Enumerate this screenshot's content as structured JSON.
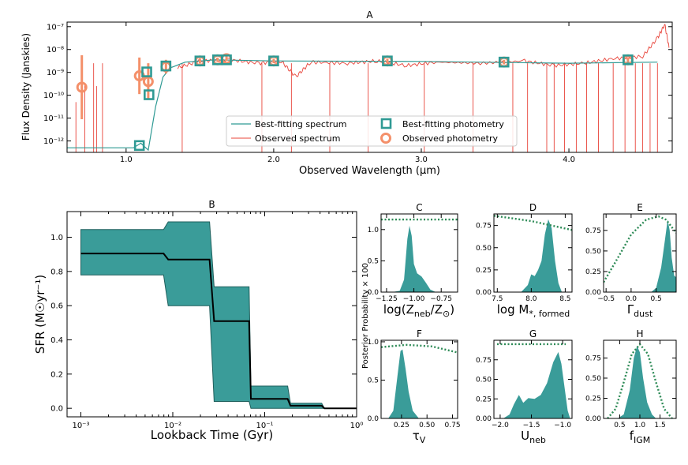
{
  "colors": {
    "model": "#2f9a94",
    "observed": "#e8443a",
    "obs_point": "#f4906a",
    "fill": "#3a9c99",
    "prior": "#2e8b57",
    "sfh_line": "#000000"
  },
  "chart_data": [
    {
      "panel": "A",
      "type": "line",
      "title": "A",
      "xlabel": "Observed Wavelength (μm)",
      "ylabel": "Flux Density (Janskies)",
      "xlim": [
        0.6,
        4.7
      ],
      "ylim_log10": [
        -12.5,
        -6.8
      ],
      "log_y": true,
      "xticks": [
        1.0,
        2.0,
        3.0,
        4.0
      ],
      "yticks": [
        {
          "v": -12,
          "l": "10⁻¹²"
        },
        {
          "v": -11,
          "l": "10⁻¹¹"
        },
        {
          "v": -10,
          "l": "10⁻¹⁰"
        },
        {
          "v": -9,
          "l": "10⁻⁹"
        },
        {
          "v": -8,
          "l": "10⁻⁸"
        },
        {
          "v": -7,
          "l": "10⁻⁷"
        }
      ],
      "legend": [
        "Best-fitting spectrum",
        "Observed spectrum",
        "Best-fitting photometry",
        "Observed photometry"
      ],
      "observed_photometry": [
        {
          "x": 0.7,
          "y": -9.65,
          "err": 1.4
        },
        {
          "x": 1.09,
          "y": -9.15,
          "err": 0.8
        },
        {
          "x": 1.15,
          "y": -9.4,
          "err": 0.8
        },
        {
          "x": 1.27,
          "y": -8.75,
          "err": 0.3
        },
        {
          "x": 1.5,
          "y": -8.5,
          "err": 0.12
        },
        {
          "x": 1.62,
          "y": -8.45,
          "err": 0.1
        },
        {
          "x": 1.68,
          "y": -8.4,
          "err": 0.1
        },
        {
          "x": 2.0,
          "y": -8.5,
          "err": 0.1
        },
        {
          "x": 2.77,
          "y": -8.5,
          "err": 0.1
        },
        {
          "x": 3.56,
          "y": -8.55,
          "err": 0.1
        },
        {
          "x": 4.4,
          "y": -8.45,
          "err": 0.1
        }
      ],
      "best_photometry": [
        {
          "x": 1.09,
          "y": -12.2
        },
        {
          "x": 1.14,
          "y": -8.98
        },
        {
          "x": 1.155,
          "y": -9.98
        },
        {
          "x": 1.27,
          "y": -8.72
        },
        {
          "x": 1.5,
          "y": -8.5
        },
        {
          "x": 1.62,
          "y": -8.45
        },
        {
          "x": 1.68,
          "y": -8.45
        },
        {
          "x": 2.0,
          "y": -8.5
        },
        {
          "x": 2.77,
          "y": -8.5
        },
        {
          "x": 3.56,
          "y": -8.55
        },
        {
          "x": 4.4,
          "y": -8.45
        }
      ],
      "best_spectrum": [
        [
          0.6,
          -12.3
        ],
        [
          1.05,
          -12.3
        ],
        [
          1.1,
          -12.1
        ],
        [
          1.15,
          -12.4
        ],
        [
          1.2,
          -10.5
        ],
        [
          1.25,
          -9.2
        ],
        [
          1.3,
          -8.8
        ],
        [
          1.4,
          -8.55
        ],
        [
          1.6,
          -8.45
        ],
        [
          2.0,
          -8.5
        ],
        [
          3.0,
          -8.52
        ],
        [
          4.0,
          -8.6
        ],
        [
          4.6,
          -8.55
        ]
      ],
      "observed_spectrum": [
        [
          1.35,
          -8.8
        ],
        [
          1.5,
          -8.5
        ],
        [
          1.7,
          -8.45
        ],
        [
          1.9,
          -8.6
        ],
        [
          2.05,
          -8.5
        ],
        [
          2.15,
          -9.2
        ],
        [
          2.25,
          -8.55
        ],
        [
          2.5,
          -8.6
        ],
        [
          2.7,
          -8.5
        ],
        [
          2.9,
          -8.7
        ],
        [
          3.1,
          -8.55
        ],
        [
          3.4,
          -8.6
        ],
        [
          3.7,
          -8.5
        ],
        [
          3.9,
          -8.7
        ],
        [
          4.1,
          -8.6
        ],
        [
          4.3,
          -8.4
        ],
        [
          4.5,
          -8.3
        ],
        [
          4.6,
          -7.5
        ],
        [
          4.65,
          -6.9
        ],
        [
          4.68,
          -8.0
        ]
      ],
      "spectrum_dips": [
        0.78,
        0.84,
        1.38,
        1.92,
        2.12,
        2.38,
        2.64,
        3.02,
        3.35,
        3.62,
        3.72,
        3.85,
        3.9,
        3.97,
        4.05,
        4.12,
        4.2,
        4.3,
        4.38,
        4.45,
        4.5,
        4.55,
        4.6
      ]
    },
    {
      "panel": "B",
      "type": "area",
      "title": "B",
      "xlabel": "Lookback Time (Gyr)",
      "ylabel": "SFR (M☉yr⁻¹)",
      "log_x": true,
      "xlim_log10": [
        -3.15,
        0.0
      ],
      "ylim": [
        -0.05,
        1.15
      ],
      "xticks": [
        {
          "v": -3,
          "l": "10⁻³"
        },
        {
          "v": -2,
          "l": "10⁻²"
        },
        {
          "v": -1,
          "l": "10⁻¹"
        },
        {
          "v": 0,
          "l": "10⁰"
        }
      ],
      "yticks": [
        0.0,
        0.2,
        0.4,
        0.6,
        0.8,
        1.0
      ],
      "x_log10": [
        -3.0,
        -2.1,
        -2.05,
        -1.6,
        -1.55,
        -1.17,
        -1.15,
        -0.75,
        -0.72,
        -0.38,
        -0.35,
        0.0
      ],
      "median": [
        0.905,
        0.905,
        0.87,
        0.87,
        0.51,
        0.51,
        0.055,
        0.055,
        0.015,
        0.015,
        0.0,
        0.0
      ],
      "upper": [
        1.045,
        1.045,
        1.09,
        1.09,
        0.71,
        0.71,
        0.13,
        0.13,
        0.03,
        0.03,
        0.0,
        0.0
      ],
      "lower": [
        0.78,
        0.78,
        0.6,
        0.6,
        0.04,
        0.04,
        0.0,
        0.0,
        0.0,
        0.0,
        0.0,
        0.0
      ]
    },
    {
      "panel": "C",
      "type": "area",
      "title": "C",
      "xlabel": "log(Zneb/Z☉)",
      "xlim": [
        -1.3,
        -0.6
      ],
      "ylim": [
        0,
        1.25
      ],
      "xticks": [
        -1.25,
        -1.0,
        -0.75
      ],
      "xtick_labels": [
        "−1.25",
        "−1.00",
        "−0.75"
      ],
      "yticks": [
        0.0,
        0.5,
        1.0
      ],
      "ytick_labels": [
        "0.0",
        "0.5",
        "1.0"
      ],
      "posterior": [
        [
          -1.2,
          0
        ],
        [
          -1.13,
          0.02
        ],
        [
          -1.09,
          0.2
        ],
        [
          -1.06,
          0.85
        ],
        [
          -1.04,
          1.06
        ],
        [
          -1.02,
          0.9
        ],
        [
          -1.0,
          0.45
        ],
        [
          -0.97,
          0.3
        ],
        [
          -0.93,
          0.25
        ],
        [
          -0.89,
          0.15
        ],
        [
          -0.85,
          0.04
        ],
        [
          -0.8,
          0
        ]
      ],
      "prior": [
        [
          -1.3,
          1.16
        ],
        [
          -0.6,
          1.16
        ]
      ]
    },
    {
      "panel": "D",
      "type": "area",
      "title": "D",
      "xlabel": "log M*,formed",
      "xlim": [
        7.45,
        8.6
      ],
      "ylim": [
        0,
        0.88
      ],
      "xticks": [
        7.5,
        8.0,
        8.5
      ],
      "xtick_labels": [
        "7.5",
        "8.0",
        "8.5"
      ],
      "yticks": [
        0.0,
        0.25,
        0.5,
        0.75
      ],
      "ytick_labels": [
        "0.00",
        "0.25",
        "0.50",
        "0.75"
      ],
      "posterior": [
        [
          7.85,
          0
        ],
        [
          7.95,
          0.08
        ],
        [
          8.0,
          0.2
        ],
        [
          8.05,
          0.18
        ],
        [
          8.1,
          0.25
        ],
        [
          8.15,
          0.35
        ],
        [
          8.2,
          0.65
        ],
        [
          8.25,
          0.82
        ],
        [
          8.3,
          0.72
        ],
        [
          8.35,
          0.35
        ],
        [
          8.4,
          0.1
        ],
        [
          8.45,
          0
        ]
      ],
      "prior": [
        [
          7.45,
          0.86
        ],
        [
          8.0,
          0.8
        ],
        [
          8.6,
          0.7
        ]
      ]
    },
    {
      "panel": "E",
      "type": "area",
      "title": "E",
      "xlabel": "Γdust",
      "xlim": [
        -0.55,
        0.9
      ],
      "ylim": [
        0,
        0.95
      ],
      "xticks": [
        -0.5,
        0.0,
        0.5
      ],
      "xtick_labels": [
        "−0.5",
        "0.0",
        "0.5"
      ],
      "yticks": [
        0.0,
        0.25,
        0.5,
        0.75
      ],
      "ytick_labels": [
        "0.00",
        "0.25",
        "0.50",
        "0.75"
      ],
      "posterior": [
        [
          0.4,
          0
        ],
        [
          0.5,
          0.05
        ],
        [
          0.6,
          0.3
        ],
        [
          0.68,
          0.65
        ],
        [
          0.73,
          0.88
        ],
        [
          0.77,
          0.75
        ],
        [
          0.81,
          0.42
        ],
        [
          0.86,
          0.2
        ],
        [
          0.9,
          0.18
        ]
      ],
      "prior": [
        [
          -0.55,
          0.12
        ],
        [
          -0.3,
          0.38
        ],
        [
          0.0,
          0.7
        ],
        [
          0.3,
          0.88
        ],
        [
          0.55,
          0.92
        ],
        [
          0.7,
          0.88
        ],
        [
          0.9,
          0.72
        ]
      ]
    },
    {
      "panel": "F",
      "type": "area",
      "title": "F",
      "xlabel": "τV",
      "xlim": [
        0.05,
        0.8
      ],
      "ylim": [
        0,
        1.02
      ],
      "xticks": [
        0.25,
        0.5,
        0.75
      ],
      "xtick_labels": [
        "0.25",
        "0.50",
        "0.75"
      ],
      "yticks": [
        0.0,
        0.5,
        1.0
      ],
      "ytick_labels": [
        "0.0",
        "0.5",
        "1.0"
      ],
      "posterior": [
        [
          0.12,
          0
        ],
        [
          0.17,
          0.1
        ],
        [
          0.21,
          0.55
        ],
        [
          0.24,
          0.88
        ],
        [
          0.26,
          0.9
        ],
        [
          0.29,
          0.65
        ],
        [
          0.32,
          0.35
        ],
        [
          0.36,
          0.1
        ],
        [
          0.42,
          0
        ]
      ],
      "prior": [
        [
          0.05,
          0.93
        ],
        [
          0.3,
          0.96
        ],
        [
          0.55,
          0.94
        ],
        [
          0.8,
          0.86
        ]
      ]
    },
    {
      "panel": "G",
      "type": "area",
      "title": "G",
      "xlabel": "Uneb",
      "xlim": [
        -2.1,
        -0.85
      ],
      "ylim": [
        0,
        1.0
      ],
      "xticks": [
        -2.0,
        -1.5,
        -1.0
      ],
      "xtick_labels": [
        "−2.0",
        "−1.5",
        "−1.0"
      ],
      "yticks": [
        0.0,
        0.25,
        0.5,
        0.75
      ],
      "ytick_labels": [
        "0.00",
        "0.25",
        "0.50",
        "0.75"
      ],
      "posterior": [
        [
          -1.95,
          0
        ],
        [
          -1.85,
          0.05
        ],
        [
          -1.78,
          0.18
        ],
        [
          -1.7,
          0.3
        ],
        [
          -1.63,
          0.2
        ],
        [
          -1.55,
          0.26
        ],
        [
          -1.45,
          0.25
        ],
        [
          -1.35,
          0.3
        ],
        [
          -1.25,
          0.45
        ],
        [
          -1.15,
          0.72
        ],
        [
          -1.07,
          0.85
        ],
        [
          -1.02,
          0.7
        ],
        [
          -0.97,
          0.4
        ],
        [
          -0.92,
          0.1
        ],
        [
          -0.88,
          0
        ]
      ],
      "prior": [
        [
          -2.05,
          0.95
        ],
        [
          -0.95,
          0.95
        ]
      ]
    },
    {
      "panel": "H",
      "type": "area",
      "title": "H",
      "xlabel": "fIGM",
      "xlim": [
        0.1,
        1.9
      ],
      "ylim": [
        0,
        0.97
      ],
      "xticks": [
        0.5,
        1.0,
        1.5
      ],
      "xtick_labels": [
        "0.5",
        "1.0",
        "1.5"
      ],
      "yticks": [
        0.0,
        0.25,
        0.5,
        0.75
      ],
      "ytick_labels": [
        "0.00",
        "0.25",
        "0.50",
        "0.75"
      ],
      "posterior": [
        [
          0.45,
          0
        ],
        [
          0.6,
          0.05
        ],
        [
          0.75,
          0.35
        ],
        [
          0.85,
          0.75
        ],
        [
          0.93,
          0.9
        ],
        [
          1.0,
          0.82
        ],
        [
          1.08,
          0.5
        ],
        [
          1.18,
          0.2
        ],
        [
          1.3,
          0.05
        ],
        [
          1.4,
          0
        ]
      ],
      "prior": [
        [
          0.2,
          0.0
        ],
        [
          0.4,
          0.12
        ],
        [
          0.6,
          0.45
        ],
        [
          0.8,
          0.8
        ],
        [
          1.0,
          0.92
        ],
        [
          1.2,
          0.8
        ],
        [
          1.4,
          0.45
        ],
        [
          1.6,
          0.12
        ],
        [
          1.8,
          0.0
        ]
      ]
    }
  ],
  "shared_ylabel": "Posterior Probability × 100"
}
